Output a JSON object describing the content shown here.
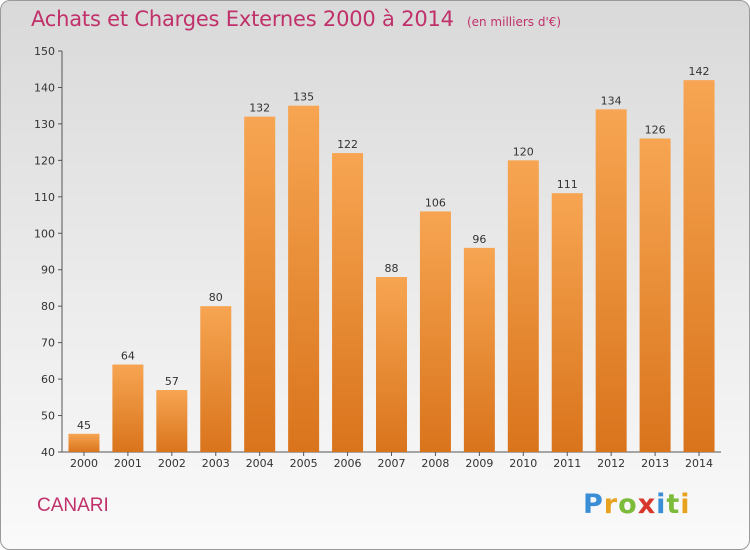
{
  "header": {
    "title": "Achats et Charges Externes 2000 à 2014",
    "subtitle": "(en milliers d'€)"
  },
  "footer": {
    "commune": "CANARI",
    "brand": "Proxiti",
    "brand_letters": [
      "P",
      "r",
      "o",
      "x",
      "i",
      "t",
      "i"
    ]
  },
  "colors": {
    "title": "#c0306a",
    "bar_top": "#f7a552",
    "bar_bottom": "#d9741c",
    "background_top": "#d9d9d9",
    "background_bottom": "#fafafa"
  },
  "chart_data": {
    "type": "bar",
    "title": "Achats et Charges Externes 2000 à 2014",
    "subtitle": "(en milliers d'€)",
    "categories": [
      "2000",
      "2001",
      "2002",
      "2003",
      "2004",
      "2005",
      "2006",
      "2007",
      "2008",
      "2009",
      "2010",
      "2011",
      "2012",
      "2013",
      "2014"
    ],
    "values": [
      45,
      64,
      57,
      80,
      132,
      135,
      122,
      88,
      106,
      96,
      120,
      111,
      134,
      126,
      142
    ],
    "xlabel": "",
    "ylabel": "",
    "ylim": [
      40,
      150
    ],
    "yticks": [
      40,
      50,
      60,
      70,
      80,
      90,
      100,
      110,
      120,
      130,
      140,
      150
    ],
    "grid": false,
    "legend": "none",
    "data_labels": true
  }
}
